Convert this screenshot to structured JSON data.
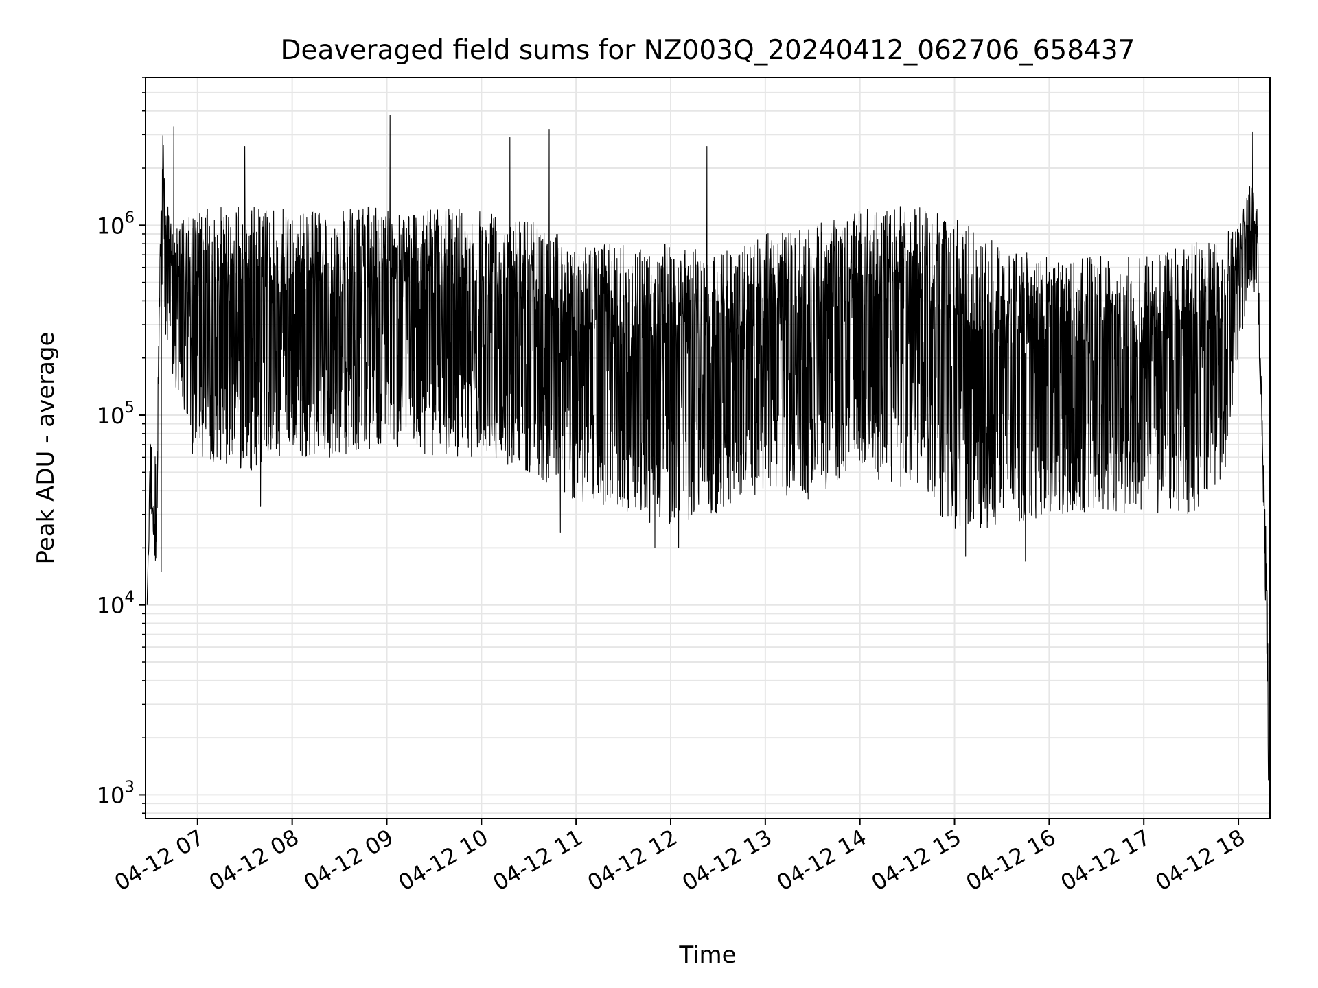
{
  "chart_data": {
    "type": "line",
    "title": "Deaveraged field sums for NZ003Q_20240412_062706_658437",
    "xlabel": "Time",
    "ylabel": "Peak ADU - average",
    "yscale": "log",
    "xlim": [
      "2024-04-12 06:27",
      "2024-04-12 18:20"
    ],
    "ylim": [
      750,
      6000000
    ],
    "grid": true,
    "line_color": "#000000",
    "x_ticks": [
      {
        "t": "2024-04-12 07:00",
        "label": "04-12 07"
      },
      {
        "t": "2024-04-12 08:00",
        "label": "04-12 08"
      },
      {
        "t": "2024-04-12 09:00",
        "label": "04-12 09"
      },
      {
        "t": "2024-04-12 10:00",
        "label": "04-12 10"
      },
      {
        "t": "2024-04-12 11:00",
        "label": "04-12 11"
      },
      {
        "t": "2024-04-12 12:00",
        "label": "04-12 12"
      },
      {
        "t": "2024-04-12 13:00",
        "label": "04-12 13"
      },
      {
        "t": "2024-04-12 14:00",
        "label": "04-12 14"
      },
      {
        "t": "2024-04-12 15:00",
        "label": "04-12 15"
      },
      {
        "t": "2024-04-12 16:00",
        "label": "04-12 16"
      },
      {
        "t": "2024-04-12 17:00",
        "label": "04-12 17"
      },
      {
        "t": "2024-04-12 18:00",
        "label": "04-12 18"
      }
    ],
    "y_ticks": [
      {
        "value": 1000,
        "base": "10",
        "exp": "3"
      },
      {
        "value": 10000,
        "base": "10",
        "exp": "4"
      },
      {
        "value": 100000,
        "base": "10",
        "exp": "5"
      },
      {
        "value": 1000000,
        "base": "10",
        "exp": "6"
      }
    ],
    "series": [
      {
        "x": [
          "2024-04-12 06:28",
          "2024-04-12 06:30",
          "2024-04-12 06:34",
          "2024-04-12 06:36",
          "2024-04-12 06:38",
          "2024-04-12 06:40",
          "2024-04-12 06:45",
          "2024-04-12 06:50",
          "2024-04-12 06:55",
          "2024-04-12 07:00",
          "2024-04-12 07:30",
          "2024-04-12 08:00",
          "2024-04-12 08:30",
          "2024-04-12 09:00",
          "2024-04-12 09:30",
          "2024-04-12 10:00",
          "2024-04-12 10:30",
          "2024-04-12 11:00",
          "2024-04-12 11:30",
          "2024-04-12 12:00",
          "2024-04-12 12:30",
          "2024-04-12 13:00",
          "2024-04-12 13:30",
          "2024-04-12 14:00",
          "2024-04-12 14:30",
          "2024-04-12 15:00",
          "2024-04-12 15:30",
          "2024-04-12 16:00",
          "2024-04-12 16:30",
          "2024-04-12 17:00",
          "2024-04-12 17:30",
          "2024-04-12 17:50",
          "2024-04-12 18:00",
          "2024-04-12 18:08",
          "2024-04-12 18:12",
          "2024-04-12 18:15",
          "2024-04-12 18:18",
          "2024-04-12 18:19"
        ],
        "upper": [
          10000,
          80000,
          60000,
          800000,
          3000000,
          1400000,
          900000,
          1100000,
          1100000,
          1200000,
          1300000,
          1200000,
          1200000,
          1300000,
          1200000,
          1300000,
          1100000,
          800000,
          800000,
          800000,
          700000,
          900000,
          1000000,
          1200000,
          1300000,
          1100000,
          800000,
          700000,
          700000,
          700000,
          800000,
          900000,
          1000000,
          1700000,
          1200000,
          100000,
          20000,
          3500
        ],
        "lower": [
          10000,
          30000,
          15000,
          200000,
          500000,
          200000,
          150000,
          90000,
          60000,
          60000,
          50000,
          60000,
          60000,
          70000,
          60000,
          60000,
          50000,
          35000,
          30000,
          25000,
          30000,
          40000,
          35000,
          50000,
          40000,
          25000,
          25000,
          30000,
          30000,
          30000,
          30000,
          40000,
          200000,
          500000,
          400000,
          60000,
          5000,
          1100
        ],
        "spikes": [
          {
            "t": "2024-04-12 06:45",
            "value": 3300000
          },
          {
            "t": "2024-04-12 07:30",
            "value": 2600000
          },
          {
            "t": "2024-04-12 09:02",
            "value": 3800000
          },
          {
            "t": "2024-04-12 10:18",
            "value": 2900000
          },
          {
            "t": "2024-04-12 10:43",
            "value": 3200000
          },
          {
            "t": "2024-04-12 12:23",
            "value": 2600000
          },
          {
            "t": "2024-04-12 18:09",
            "value": 3100000
          }
        ],
        "dips": [
          {
            "t": "2024-04-12 06:37",
            "value": 15000
          },
          {
            "t": "2024-04-12 07:40",
            "value": 33000
          },
          {
            "t": "2024-04-12 10:50",
            "value": 24000
          },
          {
            "t": "2024-04-12 11:50",
            "value": 20000
          },
          {
            "t": "2024-04-12 12:05",
            "value": 20000
          },
          {
            "t": "2024-04-12 15:07",
            "value": 18000
          },
          {
            "t": "2024-04-12 15:45",
            "value": 17000
          }
        ]
      }
    ]
  }
}
